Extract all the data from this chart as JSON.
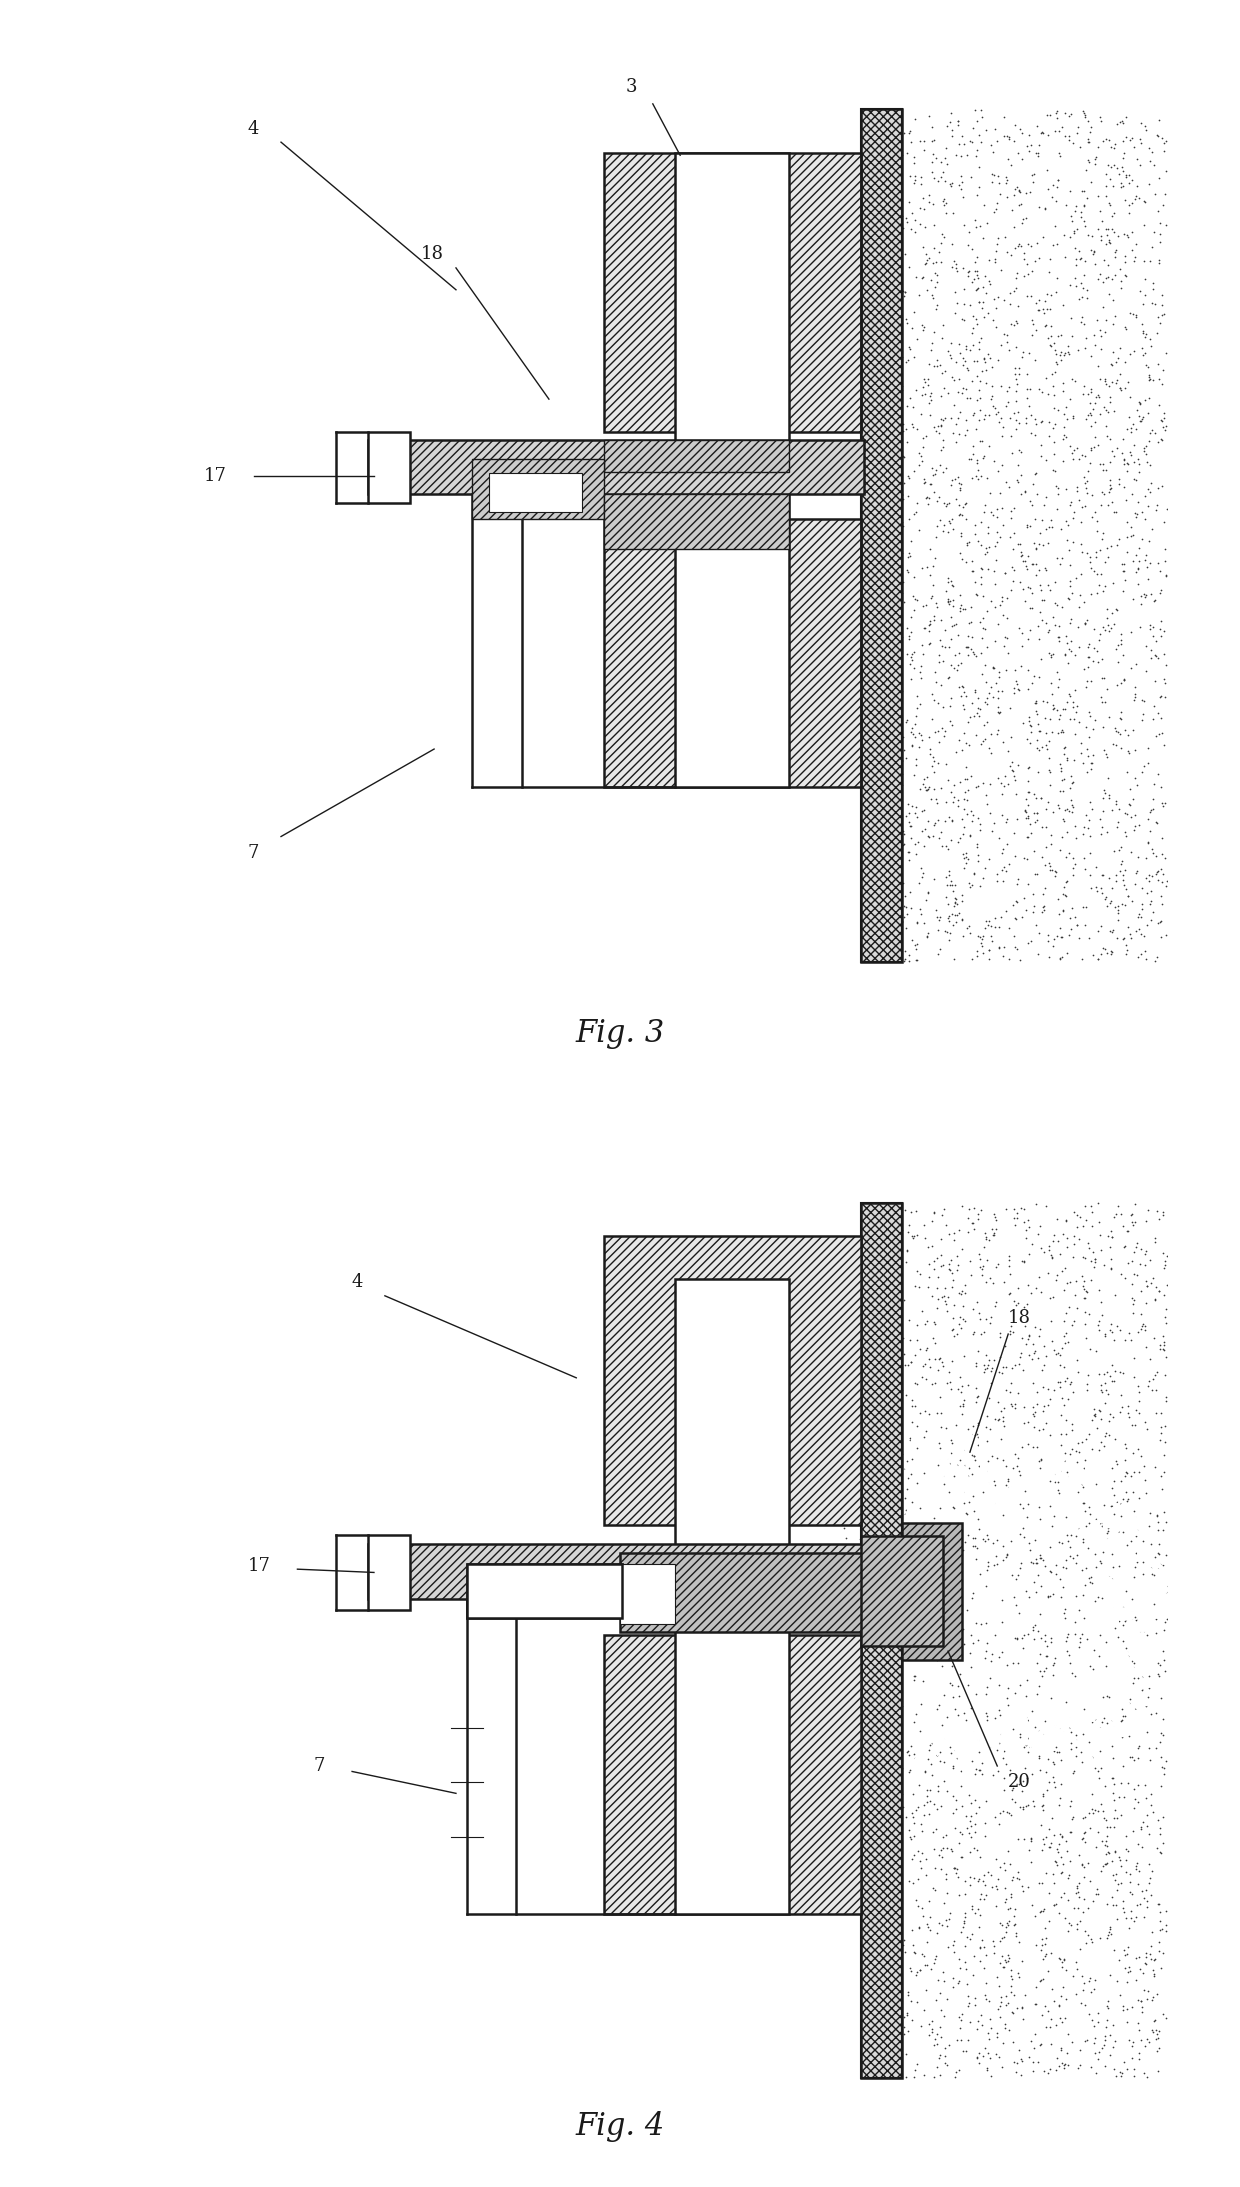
{
  "fig_width": 12.4,
  "fig_height": 21.87,
  "bg_color": "#ffffff",
  "line_color": "#1a1a1a",
  "fig3_title": "Fig. 3",
  "fig4_title": "Fig. 4"
}
